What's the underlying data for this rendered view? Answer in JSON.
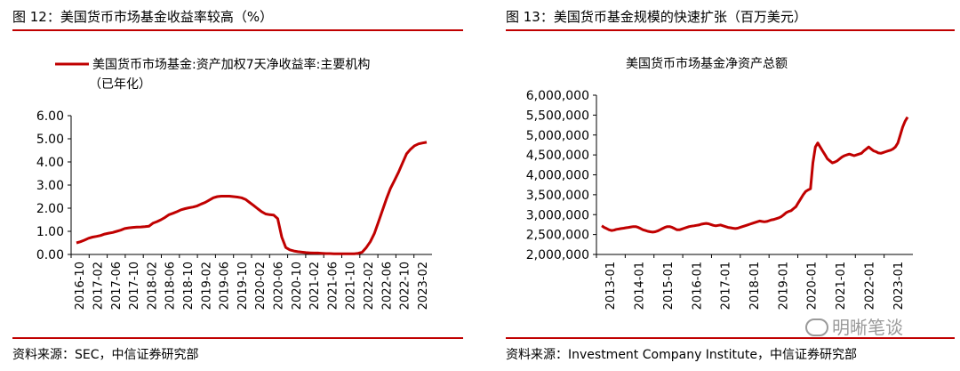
{
  "left": {
    "fig_title": "图 12：美国货币市场基金收益率较高（%）",
    "source": "资料来源：SEC，中信证券研究部"
  },
  "right": {
    "fig_title": "图 13：美国货币基金规模的快速扩张（百万美元）",
    "source": "资料来源：Investment Company Institute，中信证券研究部"
  },
  "watermark": "明晰笔谈",
  "colors": {
    "series": "#c00000",
    "rule": "#c00000"
  },
  "chart_data": [
    {
      "type": "line",
      "legend_lines": [
        "美国货币市场基金:资产加权7天净收益率:主要机构",
        "（已年化）"
      ],
      "legend_placement": "top",
      "ylim": [
        0,
        6
      ],
      "yticks": [
        0,
        1,
        2,
        3,
        4,
        5,
        6
      ],
      "ytick_labels": [
        "0.00",
        "1.00",
        "2.00",
        "3.00",
        "4.00",
        "5.00",
        "6.00"
      ],
      "xtick_labels": [
        "2016-10",
        "2017-02",
        "2017-06",
        "2017-10",
        "2018-02",
        "2018-06",
        "2018-10",
        "2019-02",
        "2019-06",
        "2019-10",
        "2020-02",
        "2020-06",
        "2020-10",
        "2021-02",
        "2021-06",
        "2021-10",
        "2022-02",
        "2022-06",
        "2022-10",
        "2023-02"
      ],
      "x_start": "2016-10",
      "grid": false,
      "series": [
        {
          "values": [
            0.5,
            0.55,
            0.62,
            0.7,
            0.75,
            0.78,
            0.82,
            0.88,
            0.92,
            0.95,
            1.0,
            1.05,
            1.12,
            1.15,
            1.17,
            1.18,
            1.19,
            1.2,
            1.22,
            1.35,
            1.42,
            1.5,
            1.6,
            1.72,
            1.78,
            1.85,
            1.93,
            1.98,
            2.02,
            2.05,
            2.1,
            2.18,
            2.25,
            2.35,
            2.45,
            2.5,
            2.52,
            2.52,
            2.52,
            2.5,
            2.48,
            2.45,
            2.38,
            2.25,
            2.12,
            1.98,
            1.85,
            1.75,
            1.72,
            1.7,
            1.55,
            0.75,
            0.3,
            0.2,
            0.15,
            0.12,
            0.1,
            0.08,
            0.07,
            0.06,
            0.06,
            0.05,
            0.04,
            0.04,
            0.03,
            0.03,
            0.03,
            0.03,
            0.03,
            0.03,
            0.05,
            0.1,
            0.3,
            0.55,
            0.9,
            1.4,
            1.9,
            2.4,
            2.85,
            3.2,
            3.55,
            3.95,
            4.35,
            4.55,
            4.7,
            4.78,
            4.82,
            4.85
          ]
        }
      ]
    },
    {
      "type": "line",
      "title": "美国货币市场基金净资产总额",
      "ylim": [
        2000000,
        6000000
      ],
      "yticks": [
        2000000,
        2500000,
        3000000,
        3500000,
        4000000,
        4500000,
        5000000,
        5500000,
        6000000
      ],
      "ytick_labels": [
        "2,000,000",
        "2,500,000",
        "3,000,000",
        "3,500,000",
        "4,000,000",
        "4,500,000",
        "5,000,000",
        "5,500,000",
        "6,000,000"
      ],
      "xtick_labels": [
        "2013-01",
        "2014-01",
        "2015-01",
        "2016-01",
        "2017-01",
        "2018-01",
        "2019-01",
        "2020-01",
        "2021-01",
        "2022-01",
        "2023-01"
      ],
      "x_start": "2013-01",
      "grid": false,
      "series": [
        {
          "values": [
            2720000,
            2680000,
            2650000,
            2620000,
            2600000,
            2610000,
            2630000,
            2640000,
            2650000,
            2660000,
            2670000,
            2680000,
            2690000,
            2700000,
            2700000,
            2680000,
            2650000,
            2620000,
            2600000,
            2580000,
            2570000,
            2560000,
            2570000,
            2590000,
            2620000,
            2650000,
            2680000,
            2700000,
            2700000,
            2680000,
            2650000,
            2620000,
            2620000,
            2640000,
            2660000,
            2680000,
            2700000,
            2710000,
            2720000,
            2730000,
            2740000,
            2760000,
            2770000,
            2780000,
            2770000,
            2750000,
            2730000,
            2720000,
            2730000,
            2740000,
            2720000,
            2700000,
            2680000,
            2670000,
            2660000,
            2650000,
            2660000,
            2680000,
            2700000,
            2720000,
            2740000,
            2760000,
            2780000,
            2800000,
            2820000,
            2840000,
            2830000,
            2820000,
            2830000,
            2850000,
            2870000,
            2880000,
            2900000,
            2920000,
            2950000,
            3000000,
            3050000,
            3080000,
            3100000,
            3150000,
            3200000,
            3300000,
            3400000,
            3500000,
            3580000,
            3620000,
            3650000,
            4300000,
            4700000,
            4800000,
            4700000,
            4600000,
            4500000,
            4400000,
            4350000,
            4300000,
            4320000,
            4350000,
            4400000,
            4450000,
            4480000,
            4500000,
            4520000,
            4500000,
            4480000,
            4500000,
            4520000,
            4540000,
            4600000,
            4650000,
            4700000,
            4650000,
            4600000,
            4580000,
            4550000,
            4540000,
            4560000,
            4580000,
            4600000,
            4620000,
            4650000,
            4700000,
            4800000,
            5000000,
            5200000,
            5350000,
            5450000
          ]
        }
      ]
    }
  ]
}
